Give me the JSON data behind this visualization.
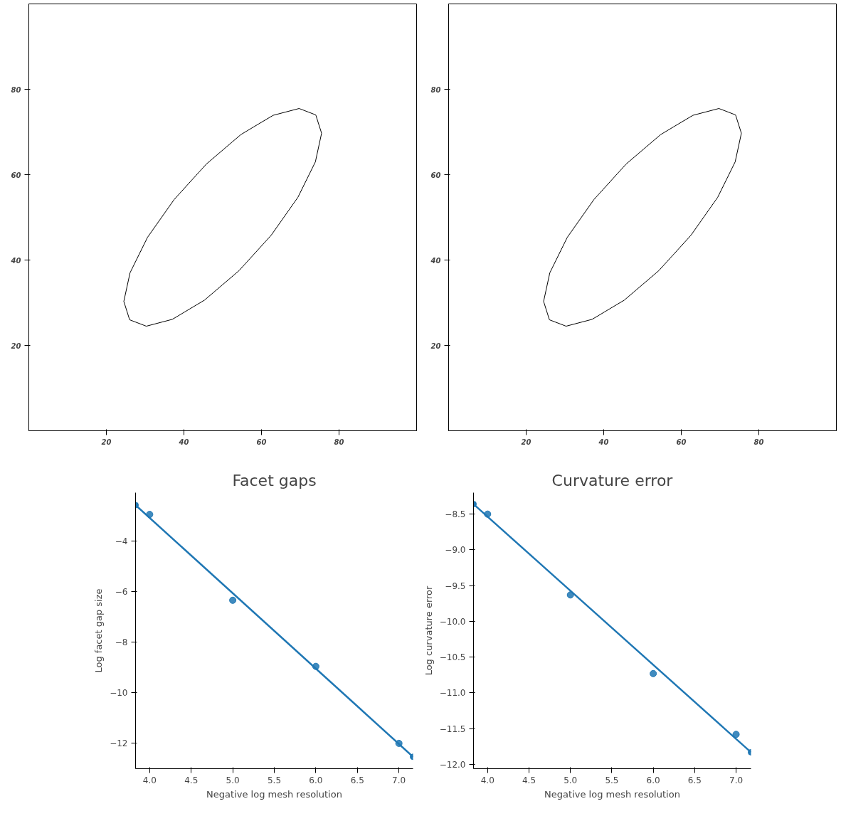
{
  "chart_data": [
    {
      "type": "line",
      "xlim": [
        0,
        100
      ],
      "ylim": [
        0,
        100
      ],
      "xticks": [
        20,
        40,
        60,
        80
      ],
      "yticks": [
        20,
        40,
        60,
        80
      ],
      "grid": false,
      "series": [
        {
          "color": "#000000",
          "marker": "none",
          "line_style": "solid",
          "x": [
            24.5,
            26.1,
            30.6,
            37.5,
            45.8,
            54.7,
            63.0,
            69.7,
            74.0,
            75.5
          ],
          "values": [
            30.3,
            37.0,
            45.3,
            54.2,
            62.5,
            69.4,
            73.9,
            75.5,
            74.0,
            69.7
          ]
        },
        {
          "color": "#000000",
          "marker": "none",
          "line_style": "solid",
          "x": [
            24.5,
            26.0,
            30.3,
            37.0,
            45.3,
            54.2,
            62.5,
            69.4,
            73.9,
            75.5
          ],
          "values": [
            30.3,
            26.0,
            24.5,
            26.1,
            30.6,
            37.5,
            45.8,
            54.7,
            63.0,
            69.7
          ]
        }
      ]
    },
    {
      "type": "line",
      "xlim": [
        0,
        100
      ],
      "ylim": [
        0,
        100
      ],
      "xticks": [
        20,
        40,
        60,
        80
      ],
      "yticks": [
        20,
        40,
        60,
        80
      ],
      "grid": false,
      "series": [
        {
          "color": "#000000",
          "marker": "none",
          "line_style": "solid",
          "x": [
            24.5,
            26.1,
            30.6,
            37.5,
            45.8,
            54.7,
            63.0,
            69.7,
            74.0,
            75.5
          ],
          "values": [
            30.3,
            37.0,
            45.3,
            54.2,
            62.5,
            69.4,
            73.9,
            75.5,
            74.0,
            69.7
          ]
        },
        {
          "color": "#000000",
          "marker": "none",
          "line_style": "solid",
          "x": [
            24.5,
            26.0,
            30.3,
            37.0,
            45.3,
            54.2,
            62.5,
            69.4,
            73.9,
            75.5
          ],
          "values": [
            30.3,
            26.0,
            24.5,
            26.1,
            30.6,
            37.5,
            45.8,
            54.7,
            63.0,
            69.7
          ]
        }
      ]
    },
    {
      "type": "scatter",
      "title": "Facet gaps",
      "xlabel": "Negative log mesh resolution",
      "ylabel": "Log facet gap size",
      "xlim": [
        3.83,
        7.17
      ],
      "ylim": [
        -13.0,
        -2.1
      ],
      "xticks": [
        {
          "value": 4,
          "label": "4.0"
        },
        {
          "value": 4.5,
          "label": "4.5"
        },
        {
          "value": 5,
          "label": "5.0"
        },
        {
          "value": 5.5,
          "label": "5.5"
        },
        {
          "value": 6,
          "label": "6.0"
        },
        {
          "value": 6.5,
          "label": "6.5"
        },
        {
          "value": 7,
          "label": "7.0"
        }
      ],
      "yticks": [
        {
          "value": -4,
          "label": "−4"
        },
        {
          "value": -6,
          "label": "−6"
        },
        {
          "value": -8,
          "label": "−8"
        },
        {
          "value": -10,
          "label": "−10"
        },
        {
          "value": -12,
          "label": "−12"
        }
      ],
      "grid": false,
      "marker": "circle",
      "series": [
        {
          "type": "scatter",
          "color": "#1f77b4",
          "x": [
            4,
            5,
            6,
            7
          ],
          "values": [
            -2.96,
            -6.35,
            -8.96,
            -12.0
          ]
        },
        {
          "type": "line",
          "color": "#1f77b4",
          "line_style": "solid",
          "x": [
            3.83,
            7.17
          ],
          "values": [
            -2.59,
            -12.53
          ]
        }
      ]
    },
    {
      "type": "scatter",
      "title": "Curvature error",
      "xlabel": "Negative log mesh resolution",
      "ylabel": "Log curvature error",
      "xlim": [
        3.83,
        7.18
      ],
      "ylim": [
        -12.06,
        -8.2
      ],
      "xticks": [
        {
          "value": 4,
          "label": "4.0"
        },
        {
          "value": 4.5,
          "label": "4.5"
        },
        {
          "value": 5,
          "label": "5.0"
        },
        {
          "value": 5.5,
          "label": "5.5"
        },
        {
          "value": 6,
          "label": "6.0"
        },
        {
          "value": 6.5,
          "label": "6.5"
        },
        {
          "value": 7,
          "label": "7.0"
        }
      ],
      "yticks": [
        {
          "value": -8.5,
          "label": "−8.5"
        },
        {
          "value": -9.0,
          "label": "−9.0"
        },
        {
          "value": -9.5,
          "label": "−9.5"
        },
        {
          "value": -10.0,
          "label": "−10.0"
        },
        {
          "value": -10.5,
          "label": "−10.5"
        },
        {
          "value": -11.0,
          "label": "−11.0"
        },
        {
          "value": -11.5,
          "label": "−11.5"
        },
        {
          "value": -12.0,
          "label": "−12.0"
        }
      ],
      "grid": false,
      "marker": "circle",
      "series": [
        {
          "type": "scatter",
          "color": "#1f77b4",
          "x": [
            4,
            5,
            6,
            7
          ],
          "values": [
            -8.5,
            -9.63,
            -10.73,
            -11.58
          ]
        },
        {
          "type": "line",
          "color": "#1f77b4",
          "line_style": "solid",
          "x": [
            3.83,
            7.18
          ],
          "values": [
            -8.36,
            -11.83
          ]
        }
      ]
    }
  ]
}
